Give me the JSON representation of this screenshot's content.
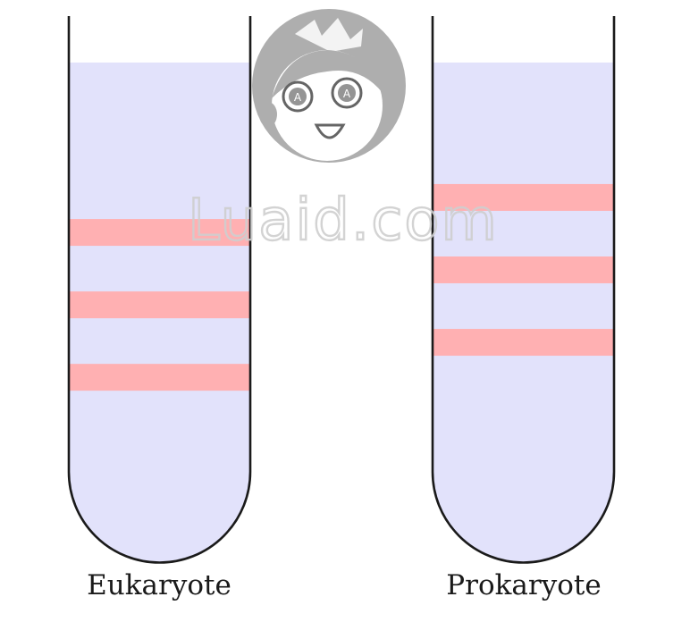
{
  "tubes": [
    {
      "label": "Eukaryote",
      "band_count": 3,
      "band_positions": [
        0.34,
        0.485,
        0.63
      ]
    },
    {
      "label": "Prokaryote",
      "band_count": 3,
      "band_positions": [
        0.27,
        0.415,
        0.56
      ]
    }
  ],
  "watermark": {
    "text": "Luaid.com",
    "icon": "cartoon-face-logo"
  },
  "colors": {
    "liquid": "#e2e2fb",
    "band": "#ffb0b2",
    "outline": "#1a1a1a",
    "watermark": "#bdbdbd"
  }
}
